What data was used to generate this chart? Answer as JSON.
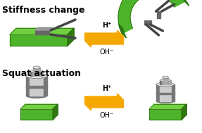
{
  "title_stiffness": "Stiffness change",
  "title_squat": "Squat actuation",
  "arrow_label_top": "H⁺",
  "arrow_label_bottom": "OH⁻",
  "green_color": "#4db32a",
  "green_dark": "#2e7a10",
  "green_light": "#70d040",
  "green_edge": "#2a6010",
  "arrow_color": "#f5a800",
  "silver_light": "#cccccc",
  "silver_mid": "#aaaaaa",
  "silver_dark": "#777777",
  "silver_top": "#e5e5e5",
  "silver_shine": "#f0f0f0",
  "bg_color": "#ffffff",
  "title_fontsize": 9,
  "label_fontsize": 7
}
